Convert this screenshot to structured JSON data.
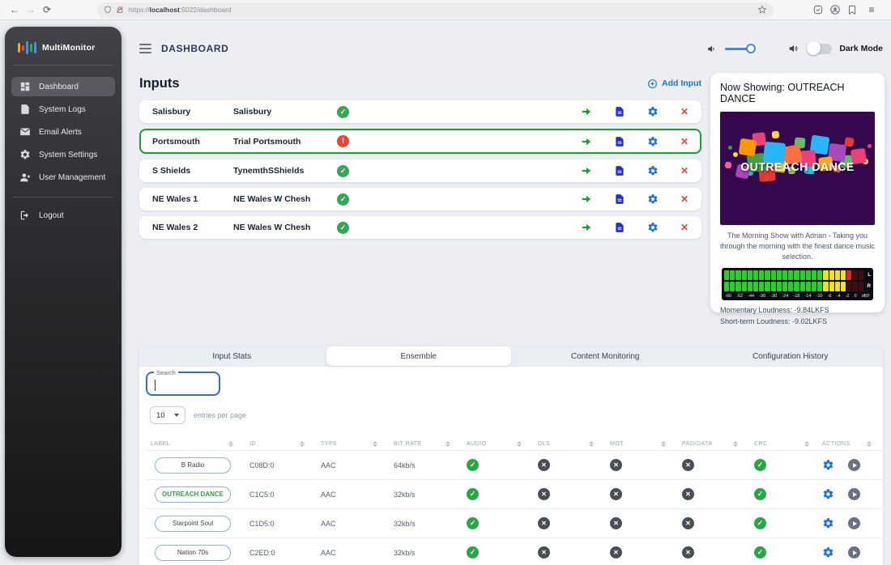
{
  "browser": {
    "url_protocol": "https://",
    "url_host": "localhost",
    "url_tail": ":5022/dashboard"
  },
  "sidebar": {
    "brand": "MultiMonitor",
    "items": [
      {
        "label": "Dashboard",
        "icon": "dashboard-icon",
        "active": true
      },
      {
        "label": "System Logs",
        "icon": "system-logs-icon",
        "active": false
      },
      {
        "label": "Email Alerts",
        "icon": "email-alerts-icon",
        "active": false
      },
      {
        "label": "System Settings",
        "icon": "system-settings-icon",
        "active": false
      },
      {
        "label": "User Management",
        "icon": "user-management-icon",
        "active": false
      }
    ],
    "logout_label": "Logout"
  },
  "header": {
    "title": "DASHBOARD",
    "dark_mode_label": "Dark Mode",
    "dark_mode_on": false,
    "volume_level": "max"
  },
  "inputs": {
    "title": "Inputs",
    "add_button_label": "Add Input",
    "rows": [
      {
        "name": "Salisbury",
        "ensemble": "Salisbury",
        "status": "ok",
        "selected": false
      },
      {
        "name": "Portsmouth",
        "ensemble": "Trial Portsmouth",
        "status": "error",
        "selected": true
      },
      {
        "name": "S Shields",
        "ensemble": "TynemthSShields",
        "status": "ok",
        "selected": false
      },
      {
        "name": "NE Wales 1",
        "ensemble": "NE Wales W Chesh",
        "status": "ok",
        "selected": false
      },
      {
        "name": "NE Wales 2",
        "ensemble": "NE Wales W Chesh",
        "status": "ok",
        "selected": false
      }
    ]
  },
  "now_showing": {
    "title": "Now Showing: OUTREACH DANCE",
    "artwork_text": "OUTREACH DANCE",
    "artwork_bg": "#36084e",
    "artwork_squares": [
      {
        "l": 6,
        "t": 62,
        "s": 8,
        "c": "#f06292",
        "r": 10
      },
      {
        "l": 16,
        "t": 50,
        "s": 6,
        "c": "#ffd54f",
        "r": 0
      },
      {
        "l": 24,
        "t": 34,
        "s": 20,
        "c": "#ff9800",
        "r": 8
      },
      {
        "l": 40,
        "t": 26,
        "s": 16,
        "c": "#ec407a",
        "r": -6
      },
      {
        "l": 54,
        "t": 38,
        "s": 26,
        "c": "#29b6f6",
        "r": 5
      },
      {
        "l": 34,
        "t": 52,
        "s": 22,
        "c": "#43a047",
        "r": -8
      },
      {
        "l": 20,
        "t": 66,
        "s": 16,
        "c": "#ab47bc",
        "r": 12
      },
      {
        "l": 48,
        "t": 66,
        "s": 20,
        "c": "#e53935",
        "r": -5
      },
      {
        "l": 66,
        "t": 60,
        "s": 15,
        "c": "#fdd835",
        "r": 6
      },
      {
        "l": 78,
        "t": 42,
        "s": 22,
        "c": "#ff7043",
        "r": -10
      },
      {
        "l": 92,
        "t": 32,
        "s": 13,
        "c": "#66bb6a",
        "r": 4
      },
      {
        "l": 98,
        "t": 48,
        "s": 20,
        "c": "#ec407a",
        "r": -4
      },
      {
        "l": 112,
        "t": 30,
        "s": 22,
        "c": "#29b6f6",
        "r": 8
      },
      {
        "l": 122,
        "t": 56,
        "s": 17,
        "c": "#ffa726",
        "r": -7
      },
      {
        "l": 134,
        "t": 40,
        "s": 21,
        "c": "#ab47bc",
        "r": 6
      },
      {
        "l": 148,
        "t": 54,
        "s": 15,
        "c": "#66bb6a",
        "r": -5
      },
      {
        "l": 154,
        "t": 32,
        "s": 11,
        "c": "#e53935",
        "r": 9
      },
      {
        "l": 162,
        "t": 46,
        "s": 18,
        "c": "#ec407a",
        "r": -8
      },
      {
        "l": 176,
        "t": 58,
        "s": 7,
        "c": "#ffd54f",
        "r": 0
      },
      {
        "l": 104,
        "t": 64,
        "s": 13,
        "c": "#26c6da",
        "r": 5
      },
      {
        "l": 84,
        "t": 68,
        "s": 9,
        "c": "#9ccc65",
        "r": -4
      },
      {
        "l": 140,
        "t": 66,
        "s": 9,
        "c": "#ff7043",
        "r": 7
      },
      {
        "l": 34,
        "t": 72,
        "s": 7,
        "c": "#29b6f6",
        "r": 0
      },
      {
        "l": 64,
        "t": 24,
        "s": 9,
        "c": "#fdd835",
        "r": -6
      },
      {
        "l": 10,
        "t": 42,
        "s": 5,
        "c": "#43a047",
        "r": 0
      },
      {
        "l": 182,
        "t": 40,
        "s": 5,
        "c": "#ec407a",
        "r": 0
      }
    ],
    "description": "The Morning Show with Adrian - Taking you through the morning with the finest dance music selection.",
    "momentary_loudness": "Momentary Loudness: -9.84LKFS",
    "short_term_loudness": "Short-term Loudness: -9.02LKFS",
    "meter": {
      "scale_labels": [
        "-60",
        "-52",
        "-44",
        "-36",
        "-30",
        "-24",
        "-18",
        "-14",
        "-10",
        "-6",
        "-4",
        "-2",
        "0",
        "dBF"
      ],
      "channels": [
        {
          "label": "L",
          "green": 17,
          "yellow": 4,
          "red": 1,
          "off": 2
        },
        {
          "label": "R",
          "green": 17,
          "yellow": 4,
          "red": 0,
          "off": 3
        }
      ]
    }
  },
  "panel": {
    "tabs": [
      {
        "label": "Input Stats",
        "active": false
      },
      {
        "label": "Ensemble",
        "active": true
      },
      {
        "label": "Content Monitoring",
        "active": false
      },
      {
        "label": "Configuration History",
        "active": false
      }
    ],
    "search_label": "Search",
    "search_value": "",
    "page_size": "10",
    "entries_label": "entries per page",
    "table": {
      "columns": [
        "Label",
        "ID",
        "Type",
        "Bit Rate",
        "Audio",
        "DLS",
        "MOT",
        "PAD/Data",
        "CRC",
        "Actions"
      ],
      "rows": [
        {
          "label": "B Radio",
          "label_style": "default",
          "id": "C08D:0",
          "type": "AAC",
          "bit_rate": "64kb/s",
          "audio": true,
          "dls": false,
          "mot": false,
          "pad_data": false,
          "crc": true
        },
        {
          "label": "OUTREACH DANCE",
          "label_style": "green",
          "id": "C1C5:0",
          "type": "AAC",
          "bit_rate": "32kb/s",
          "audio": true,
          "dls": false,
          "mot": false,
          "pad_data": false,
          "crc": true
        },
        {
          "label": "Starpoint Soul",
          "label_style": "default",
          "id": "C1D5:0",
          "type": "AAC",
          "bit_rate": "32kb/s",
          "audio": true,
          "dls": false,
          "mot": false,
          "pad_data": false,
          "crc": true
        },
        {
          "label": "Nation 70s",
          "label_style": "default",
          "id": "C2ED:0",
          "type": "AAC",
          "bit_rate": "32kb/s",
          "audio": true,
          "dls": false,
          "mot": false,
          "pad_data": false,
          "crc": true
        }
      ]
    }
  },
  "colors": {
    "accent_blue": "#1a73e8",
    "doc_blue": "#2230cf",
    "ok_green": "#28a745",
    "selected_border_green": "#1d9e33",
    "error_red": "#ea4335",
    "close_red": "#e5473c"
  }
}
